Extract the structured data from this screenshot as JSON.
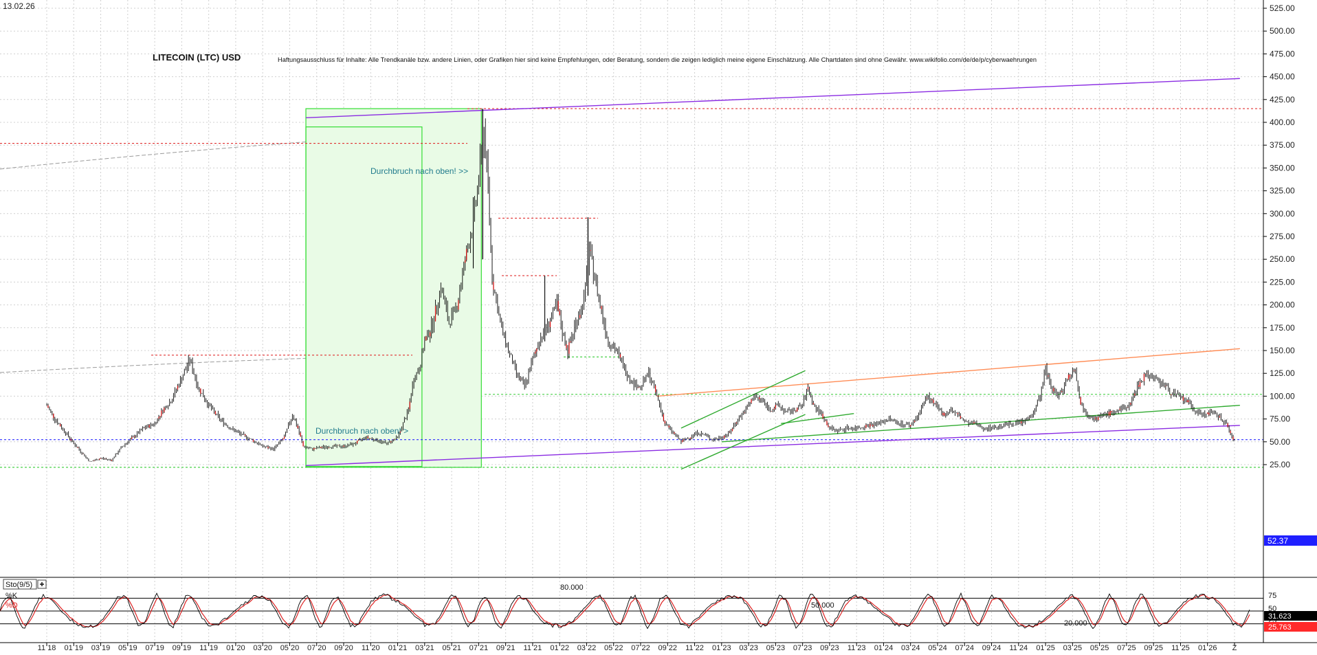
{
  "date_label": "13.02.26",
  "title": "LITECOIN (LTC) USD",
  "disclaimer": "Haftungsausschluss für Inhalte: Alle Trendkanäle bzw. andere Linien, oder Grafiken hier sind keine Empfehlungen, oder Beratung, sondern die zeigen lediglich meine eigene Einschätzung. Alle Chartdaten sind ohne Gewähr. www.wikifolio.com/de/de/p/cyberwaehrungen",
  "colors": {
    "accent_purple": "#8a2be2",
    "box_green": "#33dd33",
    "candle": "#000000",
    "up_marker": "#cc0000",
    "price_tag": "#1f1fff",
    "d_tag": "#ff2a2a",
    "k_tag": "#000000",
    "orange_line": "#ff8c55"
  },
  "annotations": {
    "breakout_upper": "Durchbruch nach oben! >>",
    "breakout_lower": "Durchbruch nach oben! >"
  },
  "price_tag": "52.37",
  "stochastic": {
    "label": "Sto(9/5)",
    "add_icon": "plus-icon",
    "k_label": "%K",
    "d_label": "%D",
    "level_80": "80.000",
    "level_50": "50.000",
    "level_20": "20.000",
    "k_value": "31.623",
    "d_value": "25.763",
    "axis": [
      "75",
      "50",
      "25"
    ]
  },
  "chart_data": {
    "type": "candlestick",
    "title": "LITECOIN (LTC) USD",
    "y_ticks": [
      "525.00",
      "500.00",
      "475.00",
      "450.00",
      "425.00",
      "400.00",
      "375.00",
      "350.00",
      "325.00",
      "300.00",
      "275.00",
      "250.00",
      "225.00",
      "200.00",
      "175.00",
      "150.00",
      "125.00",
      "100.00",
      "75.00",
      "50.00",
      "25.00"
    ],
    "ylim": [
      15,
      530
    ],
    "x_ticks": [
      "11 18",
      "01 19",
      "03 19",
      "05 19",
      "07 19",
      "09 19",
      "11 19",
      "01 20",
      "03 20",
      "05 20",
      "07 20",
      "09 20",
      "11 20",
      "01 21",
      "03 21",
      "05 21",
      "07 21",
      "09 21",
      "11 21",
      "01 22",
      "03 22",
      "05 22",
      "07 22",
      "09 22",
      "11 22",
      "01 23",
      "03 23",
      "05 23",
      "07 23",
      "09 23",
      "11 23",
      "01 24",
      "03 24",
      "05 24",
      "07 24",
      "09 24",
      "11 24",
      "01 25",
      "03 25",
      "05 25",
      "07 25",
      "09 25",
      "11 25",
      "01 26",
      "Z"
    ],
    "x_range": [
      -0.4,
      44.3
    ],
    "grid": true,
    "last_price": 52.37,
    "series_close": [
      [
        0.0,
        90
      ],
      [
        0.3,
        75
      ],
      [
        0.7,
        60
      ],
      [
        1.0,
        48
      ],
      [
        1.3,
        38
      ],
      [
        1.6,
        28
      ],
      [
        2.0,
        32
      ],
      [
        2.4,
        30
      ],
      [
        2.8,
        45
      ],
      [
        3.2,
        55
      ],
      [
        3.6,
        65
      ],
      [
        4.0,
        70
      ],
      [
        4.3,
        85
      ],
      [
        4.6,
        95
      ],
      [
        5.0,
        120
      ],
      [
        5.3,
        140
      ],
      [
        5.6,
        110
      ],
      [
        6.0,
        90
      ],
      [
        6.4,
        75
      ],
      [
        6.8,
        65
      ],
      [
        7.2,
        58
      ],
      [
        7.6,
        52
      ],
      [
        8.0,
        45
      ],
      [
        8.4,
        42
      ],
      [
        8.8,
        55
      ],
      [
        9.1,
        80
      ],
      [
        9.3,
        65
      ],
      [
        9.5,
        45
      ],
      [
        9.8,
        42
      ],
      [
        10.2,
        44
      ],
      [
        10.6,
        45
      ],
      [
        11.0,
        45
      ],
      [
        11.4,
        48
      ],
      [
        11.8,
        55
      ],
      [
        12.2,
        52
      ],
      [
        12.6,
        48
      ],
      [
        13.0,
        55
      ],
      [
        13.2,
        70
      ],
      [
        13.4,
        85
      ],
      [
        13.6,
        120
      ],
      [
        13.8,
        130
      ],
      [
        14.0,
        160
      ],
      [
        14.3,
        180
      ],
      [
        14.6,
        220
      ],
      [
        14.9,
        180
      ],
      [
        15.2,
        200
      ],
      [
        15.5,
        250
      ],
      [
        15.8,
        290
      ],
      [
        16.0,
        340
      ],
      [
        16.2,
        390
      ],
      [
        16.35,
        330
      ],
      [
        16.5,
        230
      ],
      [
        16.8,
        180
      ],
      [
        17.1,
        150
      ],
      [
        17.4,
        125
      ],
      [
        17.7,
        110
      ],
      [
        18.0,
        140
      ],
      [
        18.3,
        165
      ],
      [
        18.6,
        180
      ],
      [
        18.9,
        200
      ],
      [
        19.1,
        170
      ],
      [
        19.3,
        150
      ],
      [
        19.6,
        180
      ],
      [
        19.9,
        205
      ],
      [
        20.1,
        260
      ],
      [
        20.3,
        230
      ],
      [
        20.5,
        200
      ],
      [
        20.8,
        160
      ],
      [
        21.1,
        150
      ],
      [
        21.4,
        130
      ],
      [
        21.7,
        115
      ],
      [
        22.0,
        110
      ],
      [
        22.3,
        125
      ],
      [
        22.6,
        100
      ],
      [
        22.9,
        70
      ],
      [
        23.2,
        60
      ],
      [
        23.5,
        50
      ],
      [
        23.8,
        55
      ],
      [
        24.1,
        60
      ],
      [
        24.4,
        57
      ],
      [
        24.7,
        52
      ],
      [
        25.0,
        55
      ],
      [
        25.3,
        60
      ],
      [
        25.6,
        75
      ],
      [
        25.9,
        85
      ],
      [
        26.2,
        100
      ],
      [
        26.5,
        95
      ],
      [
        26.8,
        85
      ],
      [
        27.1,
        90
      ],
      [
        27.4,
        82
      ],
      [
        27.7,
        85
      ],
      [
        28.0,
        90
      ],
      [
        28.2,
        110
      ],
      [
        28.4,
        90
      ],
      [
        28.7,
        80
      ],
      [
        29.0,
        65
      ],
      [
        29.3,
        62
      ],
      [
        29.6,
        65
      ],
      [
        30.0,
        65
      ],
      [
        30.4,
        68
      ],
      [
        30.8,
        70
      ],
      [
        31.2,
        75
      ],
      [
        31.6,
        70
      ],
      [
        32.0,
        68
      ],
      [
        32.3,
        80
      ],
      [
        32.6,
        100
      ],
      [
        32.9,
        90
      ],
      [
        33.2,
        80
      ],
      [
        33.5,
        85
      ],
      [
        33.8,
        78
      ],
      [
        34.1,
        70
      ],
      [
        34.4,
        70
      ],
      [
        34.7,
        65
      ],
      [
        35.0,
        65
      ],
      [
        35.4,
        68
      ],
      [
        35.8,
        70
      ],
      [
        36.2,
        72
      ],
      [
        36.5,
        80
      ],
      [
        36.8,
        100
      ],
      [
        37.0,
        130
      ],
      [
        37.2,
        110
      ],
      [
        37.5,
        100
      ],
      [
        37.8,
        120
      ],
      [
        38.1,
        130
      ],
      [
        38.3,
        90
      ],
      [
        38.6,
        80
      ],
      [
        38.9,
        75
      ],
      [
        39.2,
        80
      ],
      [
        39.5,
        82
      ],
      [
        39.8,
        85
      ],
      [
        40.1,
        90
      ],
      [
        40.4,
        110
      ],
      [
        40.7,
        125
      ],
      [
        41.0,
        120
      ],
      [
        41.3,
        115
      ],
      [
        41.6,
        105
      ],
      [
        41.9,
        100
      ],
      [
        42.2,
        95
      ],
      [
        42.5,
        85
      ],
      [
        42.8,
        80
      ],
      [
        43.1,
        82
      ],
      [
        43.4,
        78
      ],
      [
        43.7,
        70
      ],
      [
        43.9,
        55
      ],
      [
        44.0,
        52.37
      ]
    ],
    "horizontal_levels": [
      {
        "value": 415,
        "color": "red",
        "style": "dotted"
      },
      {
        "value": 377,
        "color": "red",
        "style": "dotted"
      },
      {
        "value": 295,
        "color": "red",
        "style": "dotted"
      },
      {
        "value": 232,
        "color": "red",
        "style": "dotted"
      },
      {
        "value": 145,
        "color": "red",
        "style": "dotted"
      },
      {
        "value": 102,
        "color": "green",
        "style": "dotted"
      },
      {
        "value": 52.37,
        "color": "blue",
        "style": "dotted"
      },
      {
        "value": 22,
        "color": "green",
        "style": "dotted"
      }
    ],
    "trendlines": [
      {
        "from": [
          9.6,
          405
        ],
        "to": [
          44.2,
          448
        ],
        "color": "purple"
      },
      {
        "from": [
          9.6,
          24
        ],
        "to": [
          44.2,
          68
        ],
        "color": "purple"
      },
      {
        "from": [
          22.6,
          100
        ],
        "to": [
          44.2,
          152
        ],
        "color": "orange"
      },
      {
        "from": [
          23.5,
          65
        ],
        "to": [
          28.1,
          128
        ],
        "color": "green"
      },
      {
        "from": [
          23.5,
          20
        ],
        "to": [
          28.1,
          80
        ],
        "color": "green"
      },
      {
        "from": [
          27.2,
          70
        ],
        "to": [
          29.9,
          81
        ],
        "color": "green"
      },
      {
        "from": [
          25.0,
          50
        ],
        "to": [
          44.2,
          90
        ],
        "color": "green"
      }
    ],
    "shaded_zone": {
      "x0": 9.6,
      "x1": 16.1,
      "y0": 22,
      "y1": 415,
      "color": "green"
    },
    "inner_zone": {
      "x0": 9.6,
      "x1": 13.9,
      "y0": 23,
      "y1": 395,
      "color": "green"
    },
    "stochastic_levels": [
      80,
      50,
      20
    ]
  }
}
